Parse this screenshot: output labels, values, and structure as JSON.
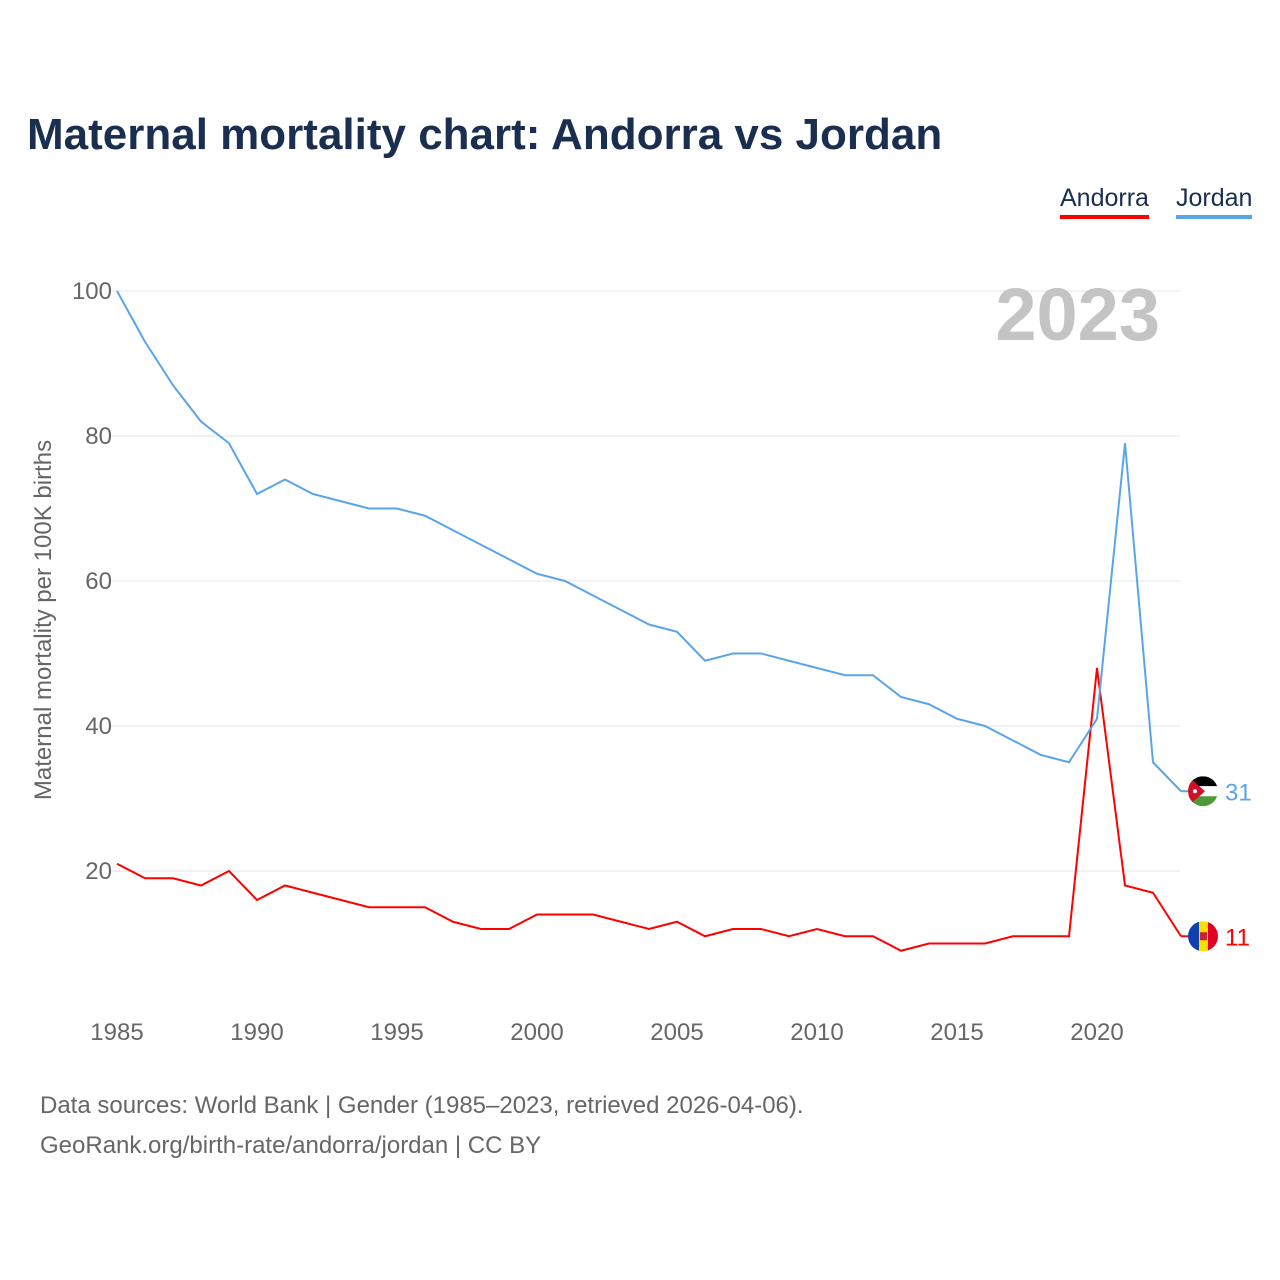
{
  "title": "Maternal mortality chart: Andorra vs Jordan",
  "legend": [
    {
      "label": "Andorra",
      "color": "#ff0000"
    },
    {
      "label": "Jordan",
      "color": "#5aa5ea"
    }
  ],
  "footer": {
    "line1": "Data sources: World Bank | Gender (1985–2023, retrieved 2026-04-06).",
    "line2": "GeoRank.org/birth-rate/andorra/jordan | CC BY"
  },
  "chart_data": {
    "type": "line",
    "title": "Maternal mortality chart: Andorra vs Jordan",
    "ylabel": "Maternal mortality per 100K births",
    "xlabel": "",
    "year_label": "2023",
    "ylim": [
      0,
      100
    ],
    "xlim": [
      1985,
      2023
    ],
    "yticks": [
      20,
      40,
      60,
      80,
      100
    ],
    "xticks": [
      1985,
      1990,
      1995,
      2000,
      2005,
      2010,
      2015,
      2020
    ],
    "x": [
      1985,
      1986,
      1987,
      1988,
      1989,
      1990,
      1991,
      1992,
      1993,
      1994,
      1995,
      1996,
      1997,
      1998,
      1999,
      2000,
      2001,
      2002,
      2003,
      2004,
      2005,
      2006,
      2007,
      2008,
      2009,
      2010,
      2011,
      2012,
      2013,
      2014,
      2015,
      2016,
      2017,
      2018,
      2019,
      2020,
      2021,
      2022,
      2023
    ],
    "series": [
      {
        "name": "Andorra",
        "color": "#ff0000",
        "end_label": "11",
        "values": [
          21,
          19,
          19,
          18,
          20,
          16,
          18,
          17,
          16,
          15,
          15,
          15,
          13,
          12,
          12,
          14,
          14,
          14,
          13,
          12,
          13,
          11,
          12,
          12,
          11,
          12,
          11,
          11,
          9,
          10,
          10,
          10,
          11,
          11,
          11,
          48,
          18,
          17,
          11
        ]
      },
      {
        "name": "Jordan",
        "color": "#5aa5ea",
        "end_label": "31",
        "values": [
          100,
          93,
          87,
          82,
          79,
          72,
          74,
          72,
          71,
          70,
          70,
          69,
          67,
          65,
          63,
          61,
          60,
          58,
          56,
          54,
          53,
          49,
          50,
          50,
          49,
          48,
          47,
          47,
          44,
          43,
          41,
          40,
          38,
          36,
          35,
          41,
          79,
          35,
          31
        ]
      }
    ]
  }
}
